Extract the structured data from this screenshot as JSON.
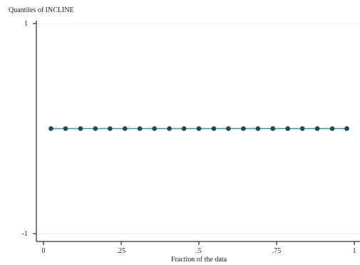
{
  "chart_data": {
    "type": "scatter",
    "title": "",
    "ylabel": "Quantiles of INCLINE",
    "xlabel": "Fraction of the data",
    "xlim": [
      0,
      1
    ],
    "ylim": [
      -1,
      1
    ],
    "x_ticks": [
      {
        "value": 0,
        "label": "0"
      },
      {
        "value": 0.25,
        "label": ".25"
      },
      {
        "value": 0.5,
        "label": ".5"
      },
      {
        "value": 0.75,
        "label": ".75"
      },
      {
        "value": 1,
        "label": "1"
      }
    ],
    "y_ticks": [
      {
        "value": 1,
        "label": "1"
      },
      {
        "value": -1,
        "label": "-1"
      }
    ],
    "grid": true,
    "series": [
      {
        "x": [
          0.024,
          0.071,
          0.119,
          0.167,
          0.214,
          0.262,
          0.31,
          0.357,
          0.405,
          0.452,
          0.5,
          0.548,
          0.595,
          0.643,
          0.69,
          0.738,
          0.786,
          0.833,
          0.881,
          0.929,
          0.976
        ],
        "y": [
          0,
          0,
          0,
          0,
          0,
          0,
          0,
          0,
          0,
          0,
          0,
          0,
          0,
          0,
          0,
          0,
          0,
          0,
          0,
          0,
          0
        ],
        "color": "#1a4a5e"
      }
    ],
    "reference_line": {
      "y": 0,
      "color": "#3a9a8c"
    }
  }
}
